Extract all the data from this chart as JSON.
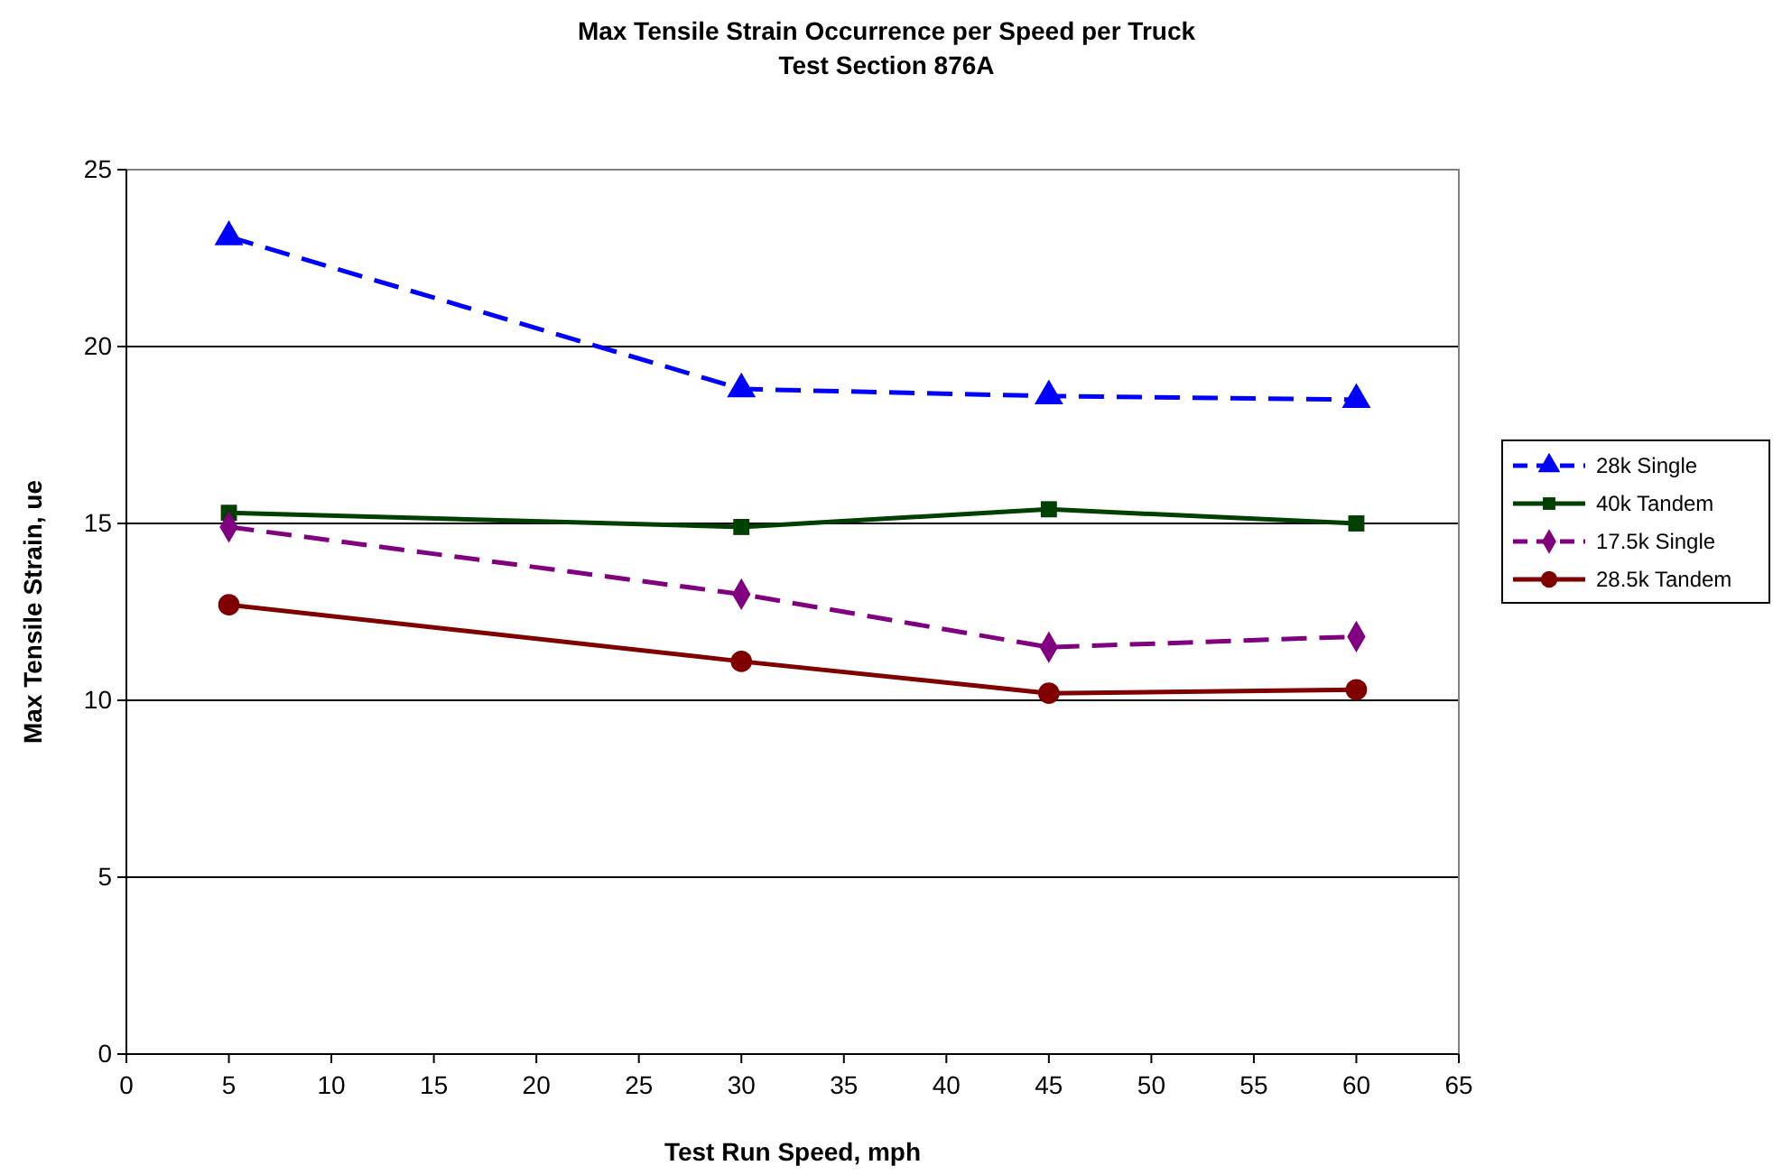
{
  "chart_data": {
    "type": "line",
    "title": "Max Tensile Strain Occurrence per Speed per Truck",
    "subtitle": "Test Section 876A",
    "xlabel": "Test Run Speed, mph",
    "ylabel": "Max Tensile Strain, ue",
    "x": [
      5,
      30,
      45,
      60
    ],
    "xlim": [
      0,
      65
    ],
    "xticks": [
      0,
      5,
      10,
      15,
      20,
      25,
      30,
      35,
      40,
      45,
      50,
      55,
      60,
      65
    ],
    "ylim": [
      0,
      25
    ],
    "yticks": [
      0,
      5,
      10,
      15,
      20,
      25
    ],
    "grid": "y",
    "legend": "right",
    "series": [
      {
        "name": "28k Single",
        "color": "#0000ff",
        "marker": "triangle",
        "line_style": "dashed",
        "values": [
          23.1,
          18.8,
          18.6,
          18.5
        ]
      },
      {
        "name": "40k Tandem",
        "color": "#004000",
        "marker": "square",
        "line_style": "solid",
        "values": [
          15.3,
          14.9,
          15.4,
          15.0
        ]
      },
      {
        "name": "17.5k Single",
        "color": "#800080",
        "marker": "diamond",
        "line_style": "dashed",
        "values": [
          14.9,
          13.0,
          11.5,
          11.8
        ]
      },
      {
        "name": "28.5k Tandem",
        "color": "#800000",
        "marker": "circle",
        "line_style": "solid",
        "values": [
          12.7,
          11.1,
          10.2,
          10.3
        ]
      }
    ]
  }
}
